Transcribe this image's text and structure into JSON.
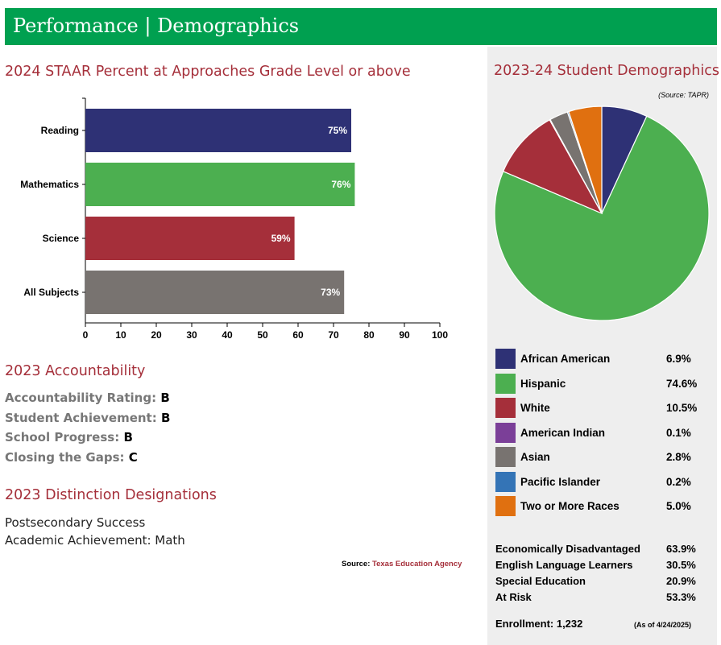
{
  "header": {
    "title": "Performance | Demographics"
  },
  "staar": {
    "title": "2024 STAAR Percent at Approaches Grade Level or above",
    "chart_data": {
      "type": "bar",
      "orientation": "horizontal",
      "categories": [
        "Reading",
        "Mathematics",
        "Science",
        "All Subjects"
      ],
      "values": [
        75,
        76,
        59,
        73
      ],
      "value_labels": [
        "75%",
        "76%",
        "59%",
        "73%"
      ],
      "colors": [
        "#2e3175",
        "#4caf50",
        "#a52f3a",
        "#787370"
      ],
      "xlim": [
        0,
        100
      ],
      "xticks": [
        "0",
        "10",
        "20",
        "30",
        "40",
        "50",
        "60",
        "70",
        "80",
        "90",
        "100"
      ],
      "grid": false
    }
  },
  "accountability": {
    "title": "2023 Accountability",
    "rows": [
      {
        "label": "Accountability Rating:",
        "value": "B"
      },
      {
        "label": "Student Achievement:",
        "value": "B"
      },
      {
        "label": "School Progress:",
        "value": "B"
      },
      {
        "label": "Closing the Gaps:",
        "value": "C"
      }
    ]
  },
  "distinctions": {
    "title": "2023 Distinction Designations",
    "items": [
      "Postsecondary Success",
      "Academic Achievement: Math"
    ]
  },
  "source": {
    "label": "Source:",
    "link_text": "Texas Education Agency"
  },
  "demographics": {
    "title": "2023-24 Student Demographics",
    "source_note": "(Source: TAPR)",
    "chart_data": {
      "type": "pie",
      "labels": [
        "African American",
        "Hispanic",
        "White",
        "American Indian",
        "Asian",
        "Pacific Islander",
        "Two or More Races"
      ],
      "values": [
        6.9,
        74.6,
        10.5,
        0.1,
        2.8,
        0.2,
        5.0
      ],
      "display": [
        "6.9%",
        "74.6%",
        "10.5%",
        "0.1%",
        "2.8%",
        "0.2%",
        "5.0%"
      ],
      "colors": [
        "#2e3175",
        "#4caf50",
        "#a52f3a",
        "#7b3f98",
        "#787370",
        "#3474b6",
        "#e07010"
      ]
    },
    "stats": [
      {
        "label": "Economically Disadvantaged",
        "value": "63.9%"
      },
      {
        "label": "English Language Learners",
        "value": "30.5%"
      },
      {
        "label": "Special Education",
        "value": "20.9%"
      },
      {
        "label": "At Risk",
        "value": "53.3%"
      }
    ],
    "enrollment": "Enrollment: 1,232",
    "as_of": "(As of 4/24/2025)"
  }
}
